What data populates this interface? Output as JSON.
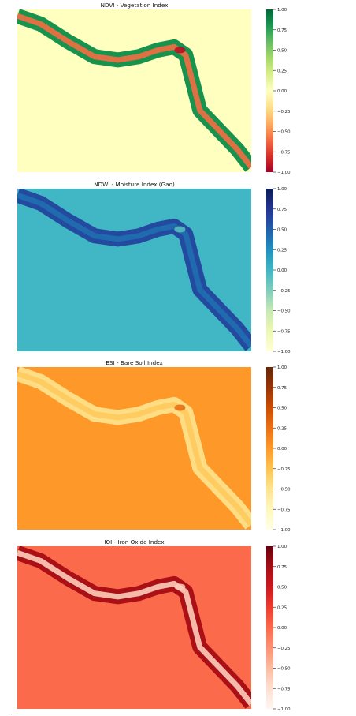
{
  "chart_data": [
    {
      "type": "heatmap",
      "title": "NDVI - Vegetation Index",
      "colormap": "RdYlGn",
      "background_value": 0.0,
      "band_edge_value": 0.82,
      "band_core_value": -0.6,
      "hotspot_value": -0.95,
      "colorbar": {
        "vmin": -1.0,
        "vmax": 1.0,
        "ticks": [
          1.0,
          0.75,
          0.5,
          0.25,
          0.0,
          -0.25,
          -0.5,
          -0.75,
          -1.0
        ],
        "tick_labels": [
          "1.00",
          "0.75",
          "0.50",
          "0.25",
          "0.00",
          "−0.25",
          "−0.50",
          "−0.75",
          "−1.00"
        ]
      },
      "xlabel": "",
      "ylabel": ""
    },
    {
      "type": "heatmap",
      "title": "NDWI - Moisture Index (Gao)",
      "colormap": "YlGnBu",
      "background_value": 0.0,
      "band_edge_value": 0.62,
      "band_core_value": 0.42,
      "hotspot_value": -0.1,
      "colorbar": {
        "vmin": -1.0,
        "vmax": 1.0,
        "ticks": [
          1.0,
          0.75,
          0.5,
          0.25,
          0.0,
          -0.25,
          -0.5,
          -0.75,
          -1.0
        ],
        "tick_labels": [
          "1.00",
          "0.75",
          "0.50",
          "0.25",
          "0.00",
          "−0.25",
          "−0.50",
          "−0.75",
          "−1.00"
        ]
      },
      "xlabel": "",
      "ylabel": ""
    },
    {
      "type": "heatmap",
      "title": "BSI - Bare Soil Index",
      "colormap": "YlOrBr",
      "background_value": 0.0,
      "band_edge_value": -0.45,
      "band_core_value": -0.3,
      "hotspot_value": 0.3,
      "colorbar": {
        "vmin": -1.0,
        "vmax": 1.0,
        "ticks": [
          1.0,
          0.75,
          0.5,
          0.25,
          0.0,
          -0.25,
          -0.5,
          -0.75,
          -1.0
        ],
        "tick_labels": [
          "1.00",
          "0.75",
          "0.50",
          "0.25",
          "0.00",
          "−0.25",
          "−0.50",
          "−0.75",
          "−1.00"
        ]
      },
      "xlabel": "",
      "ylabel": ""
    },
    {
      "type": "heatmap",
      "title": "IOI - Iron Oxide Index",
      "colormap": "Reds",
      "background_value": 0.0,
      "band_edge_value": 0.72,
      "band_core_value": -0.62,
      "hotspot_value": -0.62,
      "colorbar": {
        "vmin": -1.0,
        "vmax": 1.0,
        "ticks": [
          1.0,
          0.75,
          0.5,
          0.25,
          0.0,
          -0.25,
          -0.5,
          -0.75,
          -1.0
        ],
        "tick_labels": [
          "1.00",
          "0.75",
          "0.50",
          "0.25",
          "0.00",
          "−0.25",
          "−0.50",
          "−0.75",
          "−1.00"
        ]
      },
      "xlabel": "",
      "ylabel": ""
    }
  ]
}
